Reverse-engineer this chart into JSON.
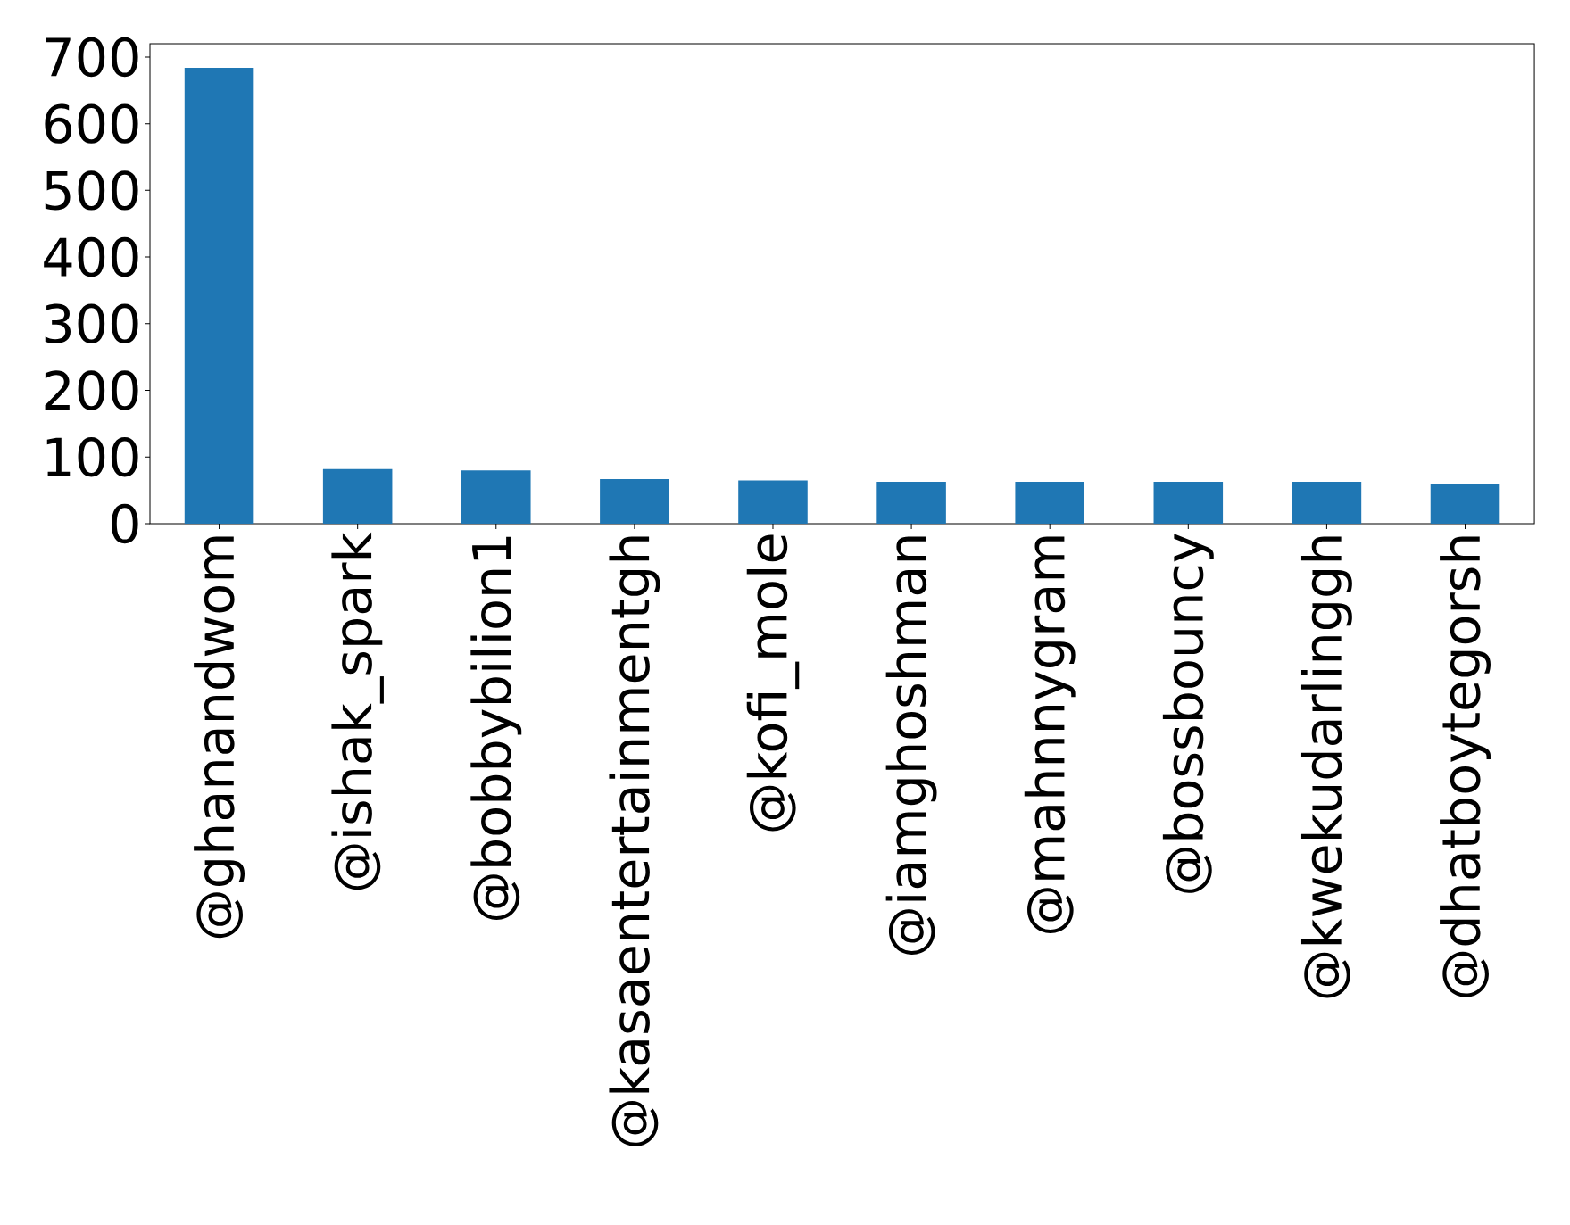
{
  "chart_data": {
    "type": "bar",
    "categories": [
      "@ghanandwom",
      "@ishak_spark",
      "@bobbybilion1",
      "@kasaentertainmentgh",
      "@kofi_mole",
      "@iamghoshman",
      "@mahnnygram",
      "@bossbouncy",
      "@kwekudarlinggh",
      "@dhatboytegorsh"
    ],
    "values": [
      684,
      82,
      80,
      67,
      65,
      63,
      63,
      63,
      63,
      60
    ],
    "color": "#1f77b4",
    "ylim": [
      0,
      720
    ],
    "yticks": [
      0,
      100,
      200,
      300,
      400,
      500,
      600,
      700
    ],
    "grid": false
  }
}
